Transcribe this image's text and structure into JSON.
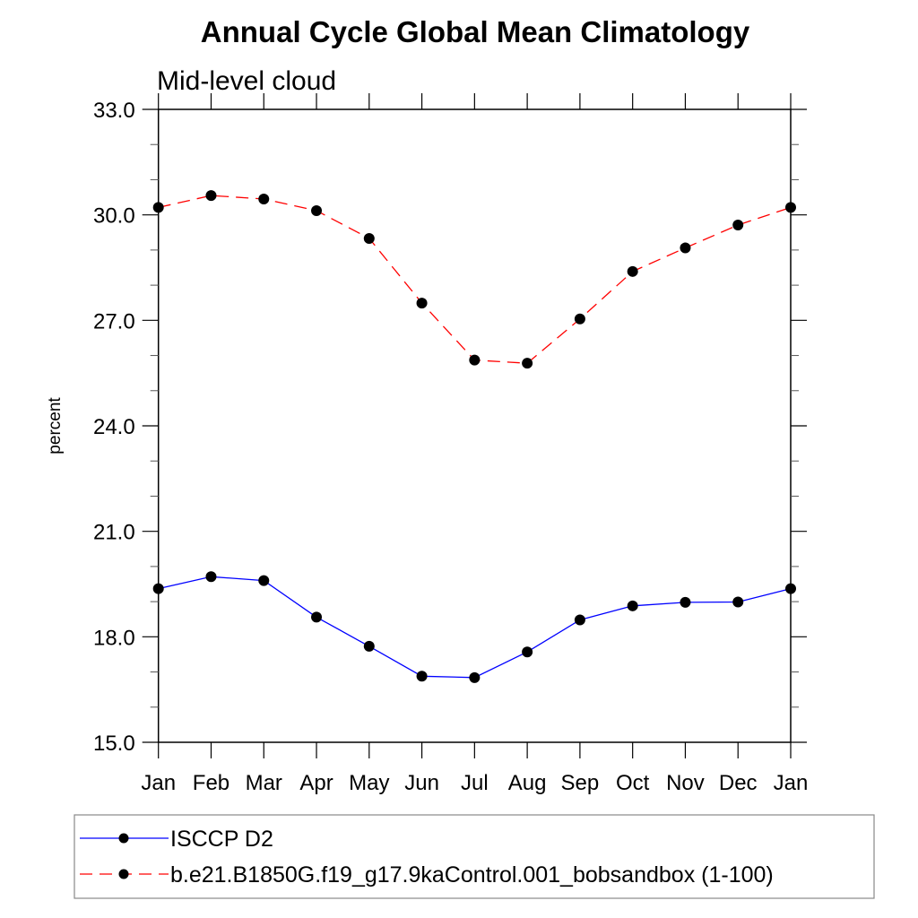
{
  "chart_data": {
    "type": "line",
    "title": "Annual Cycle Global Mean Climatology",
    "subtitle": "Mid-level cloud",
    "xlabel": "",
    "ylabel": "percent",
    "x": [
      "Jan",
      "Feb",
      "Mar",
      "Apr",
      "May",
      "Jun",
      "Jul",
      "Aug",
      "Sep",
      "Oct",
      "Nov",
      "Dec",
      "Jan"
    ],
    "ylim": [
      15.0,
      33.0
    ],
    "yticks": [
      15.0,
      18.0,
      21.0,
      24.0,
      27.0,
      30.0,
      33.0
    ],
    "ytick_labels": [
      "15.0",
      "18.0",
      "21.0",
      "24.0",
      "27.0",
      "30.0",
      "33.0"
    ],
    "yminor_step": 1.0,
    "grid": false,
    "legend_position": "bottom",
    "series": [
      {
        "name": "ISCCP D2",
        "color": "#0000ff",
        "line_style": "solid",
        "marker": "filled-circle",
        "marker_color": "#000000",
        "values": [
          19.37,
          19.71,
          19.6,
          18.56,
          17.73,
          16.88,
          16.84,
          17.57,
          18.48,
          18.88,
          18.98,
          18.99,
          19.37
        ]
      },
      {
        "name": "b.e21.B1850G.f19_g17.9kaControl.001_bobsandbox (1-100)",
        "color": "#ff0000",
        "line_style": "dashed",
        "marker": "filled-circle",
        "marker_color": "#000000",
        "values": [
          30.21,
          30.55,
          30.45,
          30.12,
          29.33,
          27.49,
          25.87,
          25.78,
          27.04,
          28.39,
          29.06,
          29.71,
          30.21
        ]
      }
    ]
  }
}
